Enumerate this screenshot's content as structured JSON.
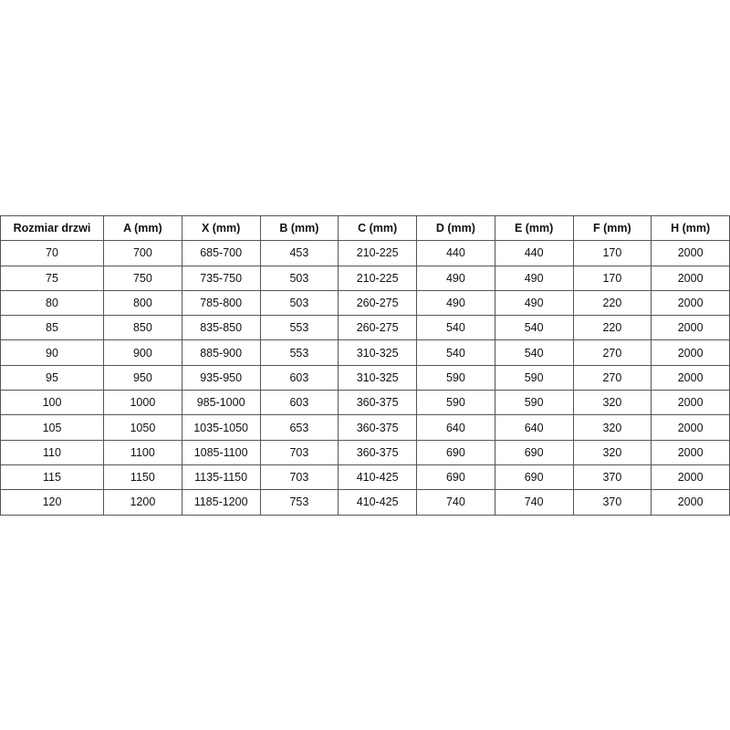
{
  "table": {
    "headers": [
      "Rozmiar drzwi",
      "A (mm)",
      "X (mm)",
      "B (mm)",
      "C (mm)",
      "D (mm)",
      "E (mm)",
      "F (mm)",
      "H (mm)"
    ],
    "rows": [
      [
        "70",
        "700",
        "685-700",
        "453",
        "210-225",
        "440",
        "440",
        "170",
        "2000"
      ],
      [
        "75",
        "750",
        "735-750",
        "503",
        "210-225",
        "490",
        "490",
        "170",
        "2000"
      ],
      [
        "80",
        "800",
        "785-800",
        "503",
        "260-275",
        "490",
        "490",
        "220",
        "2000"
      ],
      [
        "85",
        "850",
        "835-850",
        "553",
        "260-275",
        "540",
        "540",
        "220",
        "2000"
      ],
      [
        "90",
        "900",
        "885-900",
        "553",
        "310-325",
        "540",
        "540",
        "270",
        "2000"
      ],
      [
        "95",
        "950",
        "935-950",
        "603",
        "310-325",
        "590",
        "590",
        "270",
        "2000"
      ],
      [
        "100",
        "1000",
        "985-1000",
        "603",
        "360-375",
        "590",
        "590",
        "320",
        "2000"
      ],
      [
        "105",
        "1050",
        "1035-1050",
        "653",
        "360-375",
        "640",
        "640",
        "320",
        "2000"
      ],
      [
        "110",
        "1100",
        "1085-1100",
        "703",
        "360-375",
        "690",
        "690",
        "320",
        "2000"
      ],
      [
        "115",
        "1150",
        "1135-1150",
        "703",
        "410-425",
        "690",
        "690",
        "370",
        "2000"
      ],
      [
        "120",
        "1200",
        "1185-1200",
        "753",
        "410-425",
        "740",
        "740",
        "370",
        "2000"
      ]
    ]
  }
}
